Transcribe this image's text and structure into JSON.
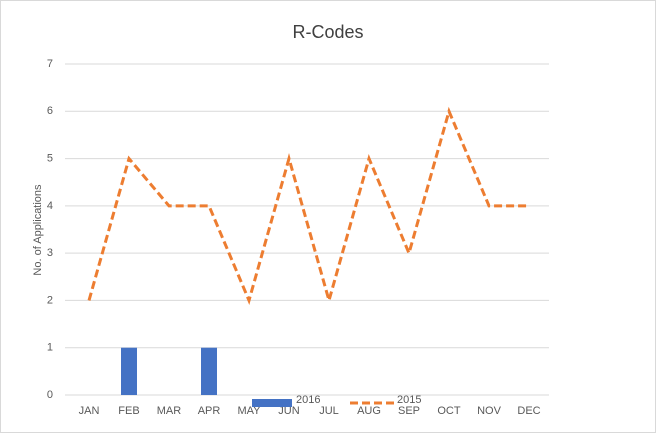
{
  "chart_data": {
    "type": "combo",
    "title": "R-Codes",
    "y_label": "No. of Applications",
    "categories": [
      "JAN",
      "FEB",
      "MAR",
      "APR",
      "MAY",
      "JUN",
      "JUL",
      "AUG",
      "SEP",
      "OCT",
      "NOV",
      "DEC"
    ],
    "series": [
      {
        "name": "2016",
        "type": "bar",
        "color": "#4472c4",
        "values": [
          0,
          1,
          0,
          1,
          0,
          0,
          0,
          0,
          0,
          0,
          0,
          0
        ]
      },
      {
        "name": "2015",
        "type": "line",
        "color": "#ed7d31",
        "values": [
          2,
          5,
          4,
          4,
          2,
          5,
          2,
          5,
          3,
          6,
          4,
          4
        ]
      }
    ],
    "ylim": [
      0,
      7
    ],
    "yticks": [
      0,
      1,
      2,
      3,
      4,
      5,
      6,
      7
    ],
    "grid": true,
    "legend": "bottom"
  }
}
